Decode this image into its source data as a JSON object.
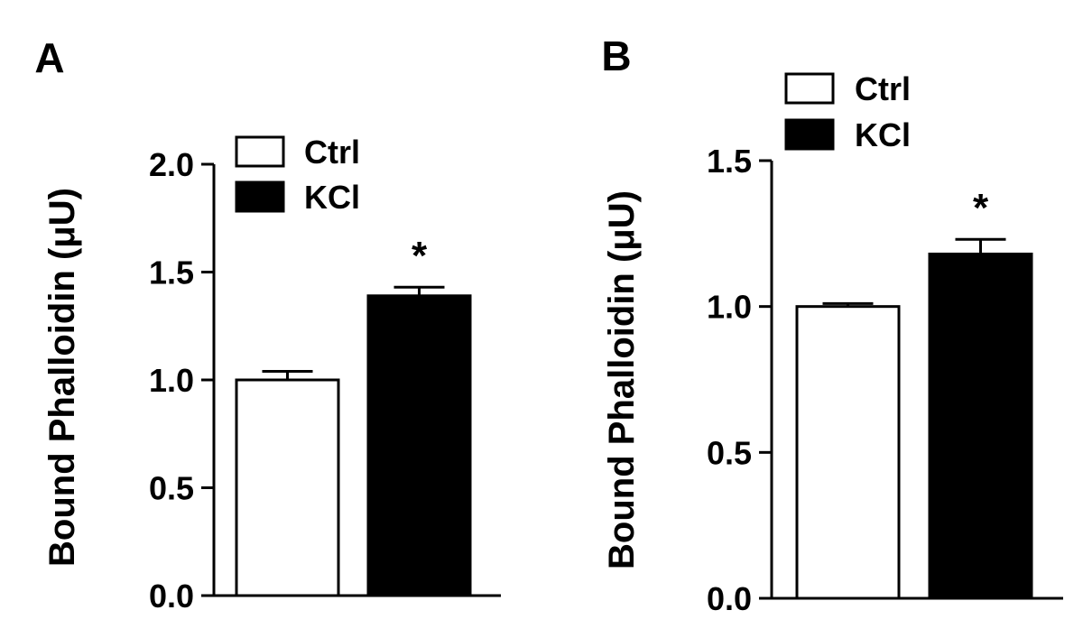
{
  "chart_data": [
    {
      "type": "bar",
      "panel_label": "A",
      "ylabel": "Bound Phalloidin (μU)",
      "ylim": [
        0,
        2.0
      ],
      "yticks": [
        "0.0",
        "0.5",
        "1.0",
        "1.5",
        "2.0"
      ],
      "ytick_values": [
        0,
        0.5,
        1.0,
        1.5,
        2.0
      ],
      "legend_position": "top-left",
      "grid": false,
      "series": [
        {
          "name": "Ctrl",
          "value": 1.0,
          "error": 0.04,
          "fill": "#ffffff",
          "significance": ""
        },
        {
          "name": "KCl",
          "value": 1.39,
          "error": 0.04,
          "fill": "#000000",
          "significance": "*"
        }
      ]
    },
    {
      "type": "bar",
      "panel_label": "B",
      "ylabel": "Bound Phalloidin (μU)",
      "ylim": [
        0,
        1.5
      ],
      "yticks": [
        "0.0",
        "0.5",
        "1.0",
        "1.5"
      ],
      "ytick_values": [
        0,
        0.5,
        1.0,
        1.5
      ],
      "legend_position": "top-left",
      "grid": false,
      "series": [
        {
          "name": "Ctrl",
          "value": 1.0,
          "error": 0.01,
          "fill": "#ffffff",
          "significance": ""
        },
        {
          "name": "KCl",
          "value": 1.18,
          "error": 0.05,
          "fill": "#000000",
          "significance": "*"
        }
      ]
    }
  ]
}
